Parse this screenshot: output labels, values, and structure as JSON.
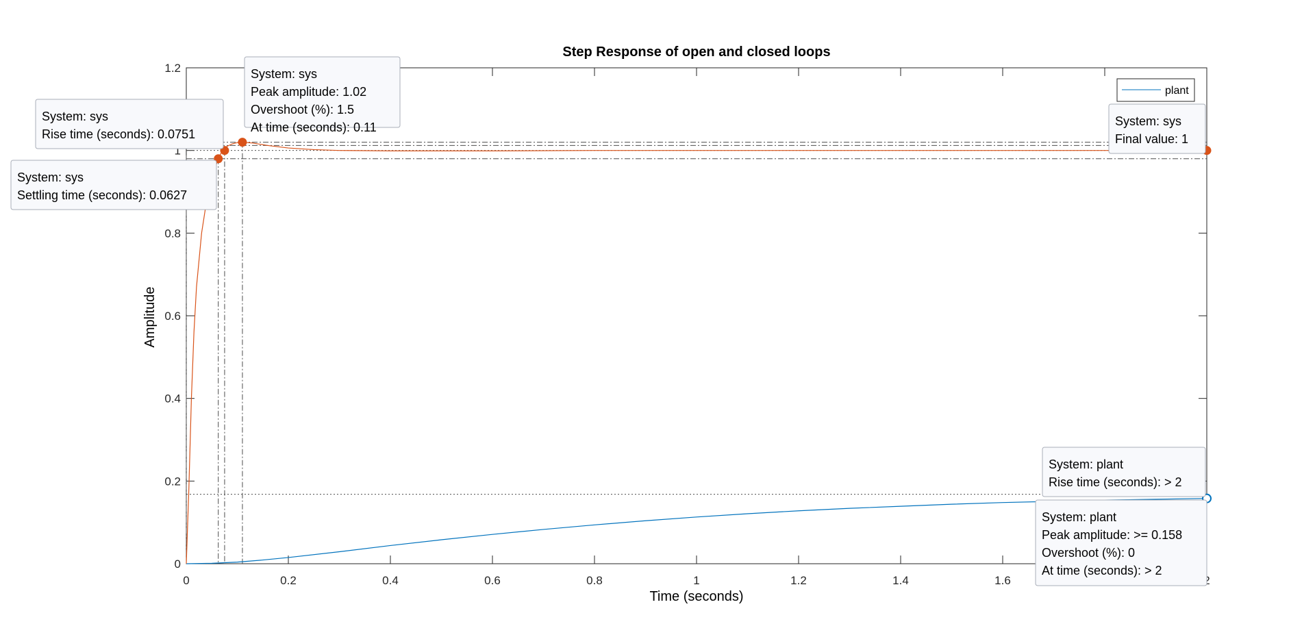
{
  "chart_data": {
    "type": "line",
    "title": "Step Response of open and closed loops",
    "xlabel": "Time (seconds)",
    "ylabel": "Amplitude",
    "xlim": [
      0,
      2
    ],
    "ylim": [
      0,
      1.2
    ],
    "xticks": [
      "0",
      "0.2",
      "0.4",
      "0.6",
      "0.8",
      "1",
      "1.2",
      "1.4",
      "1.6",
      "1.8",
      "2"
    ],
    "yticks": [
      "0",
      "0.2",
      "0.4",
      "0.6",
      "0.8",
      "1",
      "1.2"
    ],
    "grid": false,
    "legend": {
      "position": "top-right",
      "entries": [
        "plant"
      ]
    },
    "colors": {
      "plant": "#0072BD",
      "sys": "#D95319"
    },
    "series": [
      {
        "name": "plant",
        "x": [
          0,
          0.05,
          0.1,
          0.15,
          0.2,
          0.3,
          0.4,
          0.5,
          0.6,
          0.7,
          0.8,
          0.9,
          1.0,
          1.1,
          1.2,
          1.3,
          1.4,
          1.5,
          1.6,
          1.7,
          1.8,
          1.9,
          2.0
        ],
        "y": [
          0,
          0.001,
          0.004,
          0.009,
          0.015,
          0.029,
          0.044,
          0.058,
          0.071,
          0.083,
          0.094,
          0.104,
          0.113,
          0.121,
          0.128,
          0.134,
          0.139,
          0.144,
          0.148,
          0.151,
          0.154,
          0.156,
          0.158
        ]
      },
      {
        "name": "sys",
        "x": [
          0,
          0.005,
          0.01,
          0.015,
          0.02,
          0.03,
          0.04,
          0.05,
          0.06,
          0.0627,
          0.07,
          0.0751,
          0.08,
          0.09,
          0.1,
          0.11,
          0.13,
          0.16,
          0.2,
          0.25,
          0.3,
          0.4,
          0.5,
          0.6,
          0.8,
          1.0,
          1.5,
          2.0
        ],
        "y": [
          0,
          0.18,
          0.4,
          0.56,
          0.67,
          0.8,
          0.88,
          0.935,
          0.97,
          0.98,
          0.998,
          1.005,
          1.01,
          1.016,
          1.019,
          1.02,
          1.018,
          1.012,
          1.006,
          1.002,
          1.0,
          0.999,
          0.999,
          0.999,
          1.0,
          1.0,
          1.0,
          1.0
        ]
      }
    ],
    "markers": {
      "sys_settling": {
        "x": 0.0627,
        "y": 0.98
      },
      "sys_rise": {
        "x": 0.0751,
        "y": 1.0
      },
      "sys_peak": {
        "x": 0.11,
        "y": 1.02
      },
      "sys_final": {
        "x": 2.0,
        "y": 1.0
      },
      "plant_end": {
        "x": 2.0,
        "y": 0.158
      }
    },
    "annotations": {
      "sys_peak": [
        "System: sys",
        "Peak amplitude: 1.02",
        "Overshoot (%): 1.5",
        "At time (seconds): 0.11"
      ],
      "sys_rise": [
        "System: sys",
        "Rise time (seconds): 0.0751"
      ],
      "sys_settling": [
        "System: sys",
        "Settling time (seconds): 0.0627"
      ],
      "sys_final": [
        "System: sys",
        "Final value: 1"
      ],
      "plant_rise": [
        "System: plant",
        "Rise time (seconds): > 2"
      ],
      "plant_peak": [
        "System: plant",
        "Peak amplitude: >= 0.158",
        "Overshoot (%): 0",
        "At time (seconds): > 2"
      ]
    }
  }
}
